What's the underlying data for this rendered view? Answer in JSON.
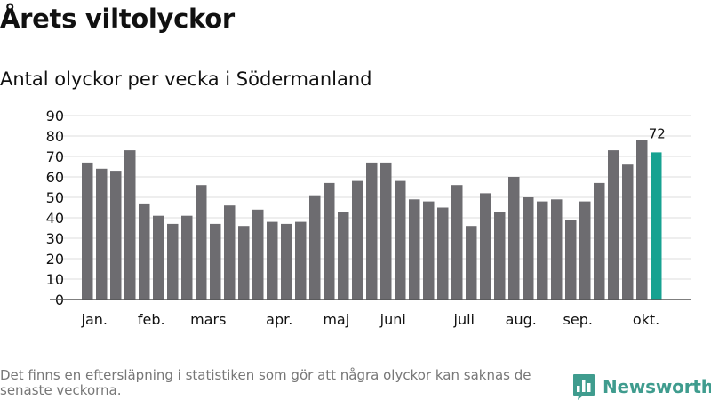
{
  "header": {
    "title": "Årets viltolyckor",
    "subtitle": "Antal olyckor per vecka i Södermanland"
  },
  "footer": {
    "note": "Det finns en eftersläpning i statistiken som gör att några olyckor kan saknas de senaste veckorna.",
    "brand": "Newsworthy"
  },
  "colors": {
    "bar": "#6d6c70",
    "highlight": "#16a291",
    "grid": "#dddddd",
    "axis": "#555555",
    "text": "#111111",
    "brand": "#3f9c8e"
  },
  "chart_data": {
    "type": "bar",
    "title": "Antal olyckor per vecka i Södermanland",
    "xlabel": "",
    "ylabel": "",
    "ylim": [
      0,
      90
    ],
    "yticks": [
      0,
      10,
      20,
      30,
      40,
      50,
      60,
      70,
      80,
      90
    ],
    "grid": true,
    "values": [
      67,
      64,
      63,
      73,
      47,
      41,
      37,
      41,
      56,
      37,
      46,
      36,
      44,
      38,
      37,
      38,
      51,
      57,
      43,
      58,
      67,
      67,
      58,
      49,
      48,
      45,
      56,
      36,
      52,
      43,
      60,
      50,
      48,
      49,
      39,
      48,
      57,
      73,
      66,
      78,
      72
    ],
    "highlight_index": 40,
    "highlight_label": "72",
    "month_labels": [
      {
        "label": "jan.",
        "index": 0.5
      },
      {
        "label": "feb.",
        "index": 4.5
      },
      {
        "label": "mars",
        "index": 8.5
      },
      {
        "label": "apr.",
        "index": 13.5
      },
      {
        "label": "maj",
        "index": 17.5
      },
      {
        "label": "juni",
        "index": 21.5
      },
      {
        "label": "juli",
        "index": 26.5
      },
      {
        "label": "aug.",
        "index": 30.5
      },
      {
        "label": "sep.",
        "index": 34.5
      },
      {
        "label": "okt.",
        "index": 39.3
      }
    ]
  }
}
